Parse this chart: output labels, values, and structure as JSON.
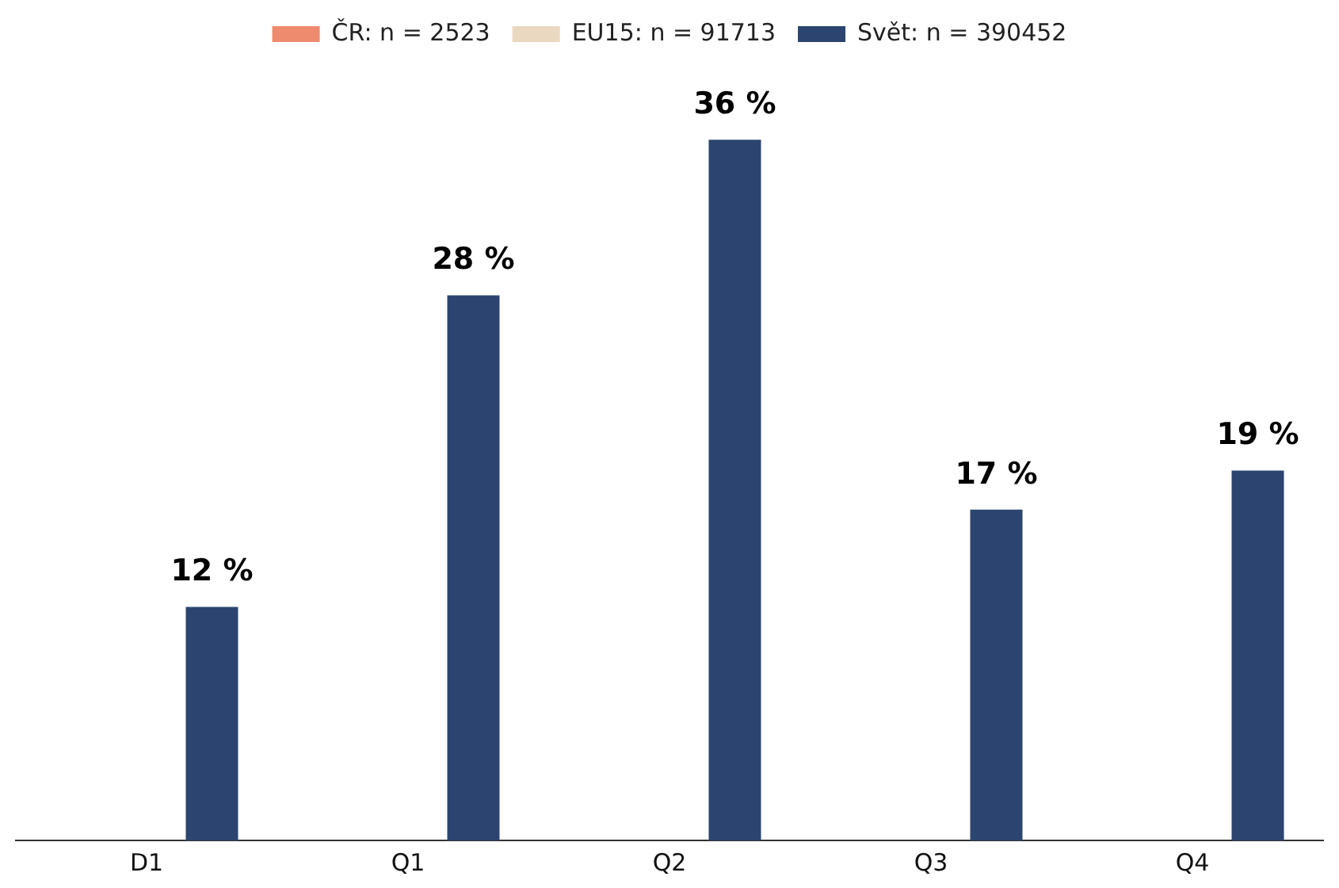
{
  "chart_data": {
    "type": "bar",
    "categories": [
      "D1",
      "Q1",
      "Q2",
      "Q3",
      "Q4"
    ],
    "series": [
      {
        "name": "ČR: n = 2523",
        "color": "#ee8a6e",
        "values": [
          null,
          null,
          null,
          null,
          null
        ]
      },
      {
        "name": "EU15: n = 91713",
        "color": "#ead8c0",
        "values": [
          null,
          null,
          null,
          null,
          null
        ]
      },
      {
        "name": "Svět: n = 390452",
        "color": "#2b4570",
        "values": [
          12,
          28,
          36,
          17,
          19
        ],
        "value_labels": [
          "12 %",
          "28 %",
          "36 %",
          "17 %",
          "19 %"
        ]
      }
    ],
    "legend": "top",
    "grid": false
  }
}
